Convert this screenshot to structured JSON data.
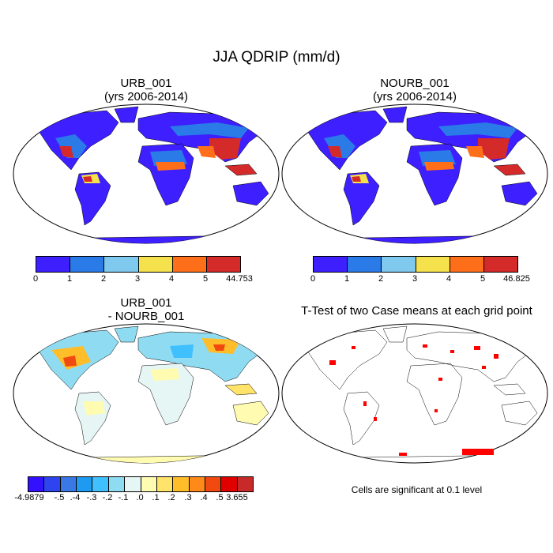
{
  "title": "JJA QDRIP (mm/d)",
  "panels": [
    {
      "id": "urb",
      "title_line1": "URB_001",
      "title_line2": "(yrs 2006-2014)"
    },
    {
      "id": "nourb",
      "title_line1": "NOURB_001",
      "title_line2": "(yrs 2006-2014)"
    },
    {
      "id": "diff",
      "title_line1": "URB_001",
      "title_line2": "- NOURB_001"
    },
    {
      "id": "ttest",
      "title_line1": "T-Test of two Case means at each grid point",
      "title_line2": ""
    }
  ],
  "colorbars": {
    "urb": {
      "labels": [
        "0",
        "1",
        "2",
        "3",
        "4",
        "5",
        "44.753"
      ],
      "colors": [
        "#3d1fff",
        "#2a7ae8",
        "#7fc9ee",
        "#f5e14c",
        "#ff6f1a",
        "#d42a2a"
      ]
    },
    "nourb": {
      "labels": [
        "0",
        "1",
        "2",
        "3",
        "4",
        "5",
        "46.825"
      ],
      "colors": [
        "#3d1fff",
        "#2a7ae8",
        "#7fc9ee",
        "#f5e14c",
        "#ff6f1a",
        "#d42a2a"
      ]
    },
    "diff": {
      "labels": [
        "-4.9879",
        "-.5",
        ".-4",
        "-.3",
        "-.2",
        "-.1",
        ".0",
        ".1",
        ".2",
        ".3",
        ".4",
        ".5",
        "3.655"
      ],
      "colors": [
        "#3311ff",
        "#2d44ee",
        "#3a78e6",
        "#1e9bf0",
        "#40c0ff",
        "#8fdcf2",
        "#e6f6f4",
        "#fffbb0",
        "#ffe36a",
        "#ffbd2a",
        "#ff8a1a",
        "#f04a10",
        "#e00000",
        "#c82a2a"
      ]
    }
  },
  "note": "Cells are significant at 0.1 level",
  "chart_data": {
    "type": "heatmap",
    "title": "JJA QDRIP (mm/d)",
    "variable": "QDRIP",
    "units": "mm/d",
    "season": "JJA",
    "years": "2006-2014",
    "maps": [
      {
        "name": "URB_001",
        "range_labels": [
          0,
          1,
          2,
          3,
          4,
          5,
          44.753
        ]
      },
      {
        "name": "NOURB_001",
        "range_labels": [
          0,
          1,
          2,
          3,
          4,
          5,
          46.825
        ]
      },
      {
        "name": "URB_001 - NOURB_001",
        "range_labels": [
          -4.9879,
          -0.5,
          -0.4,
          -0.3,
          -0.2,
          -0.1,
          0,
          0.1,
          0.2,
          0.3,
          0.4,
          0.5,
          3.655
        ]
      },
      {
        "name": "T-Test of two Case means at each grid point",
        "significance_level": 0.1
      }
    ]
  }
}
